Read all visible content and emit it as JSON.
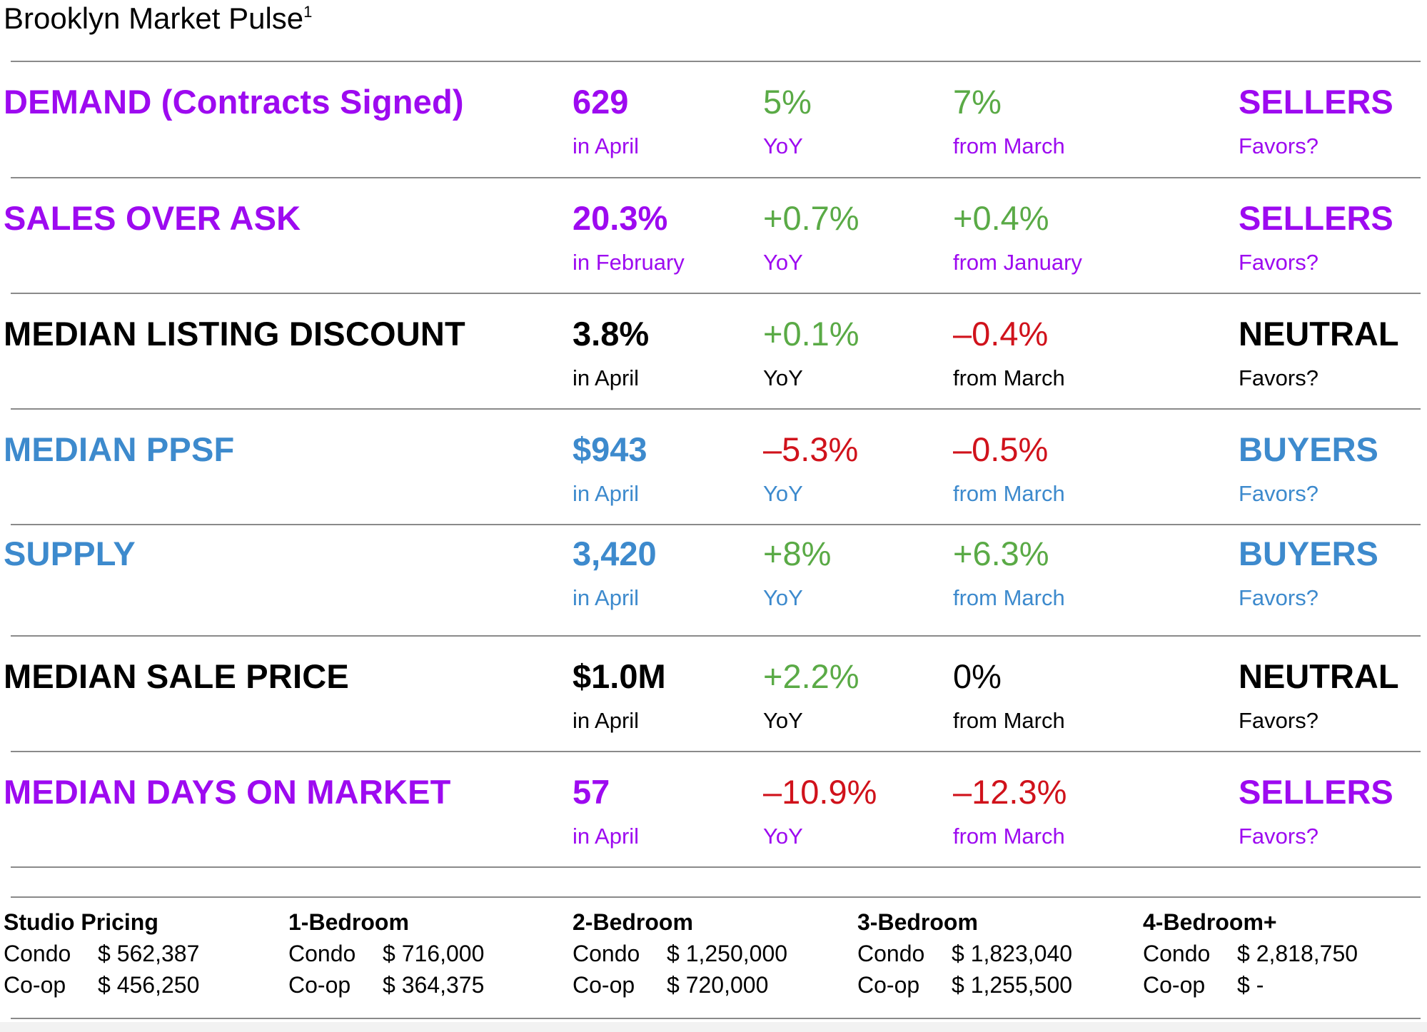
{
  "header": {
    "title": "Brooklyn Market Pulse",
    "footnote": "1"
  },
  "colors": {
    "purple": "#9d0af0",
    "blue": "#3d8acd",
    "black": "#000000",
    "green": "#5aaa46",
    "red": "#d0121b"
  },
  "metrics": [
    {
      "label": "DEMAND (Contracts Signed)",
      "value": "629",
      "period": "in April",
      "yoy": "5%",
      "yoy_label": "YoY",
      "mom": "7%",
      "mom_label": "from March",
      "favors": "SELLERS",
      "favors_label": "Favors?"
    },
    {
      "label": "SALES OVER ASK",
      "value": "20.3%",
      "period": "in February",
      "yoy": "+0.7%",
      "yoy_label": "YoY",
      "mom": "+0.4%",
      "mom_label": "from January",
      "favors": "SELLERS",
      "favors_label": "Favors?"
    },
    {
      "label": "MEDIAN LISTING DISCOUNT",
      "value": "3.8%",
      "period": "in April",
      "yoy": "+0.1%",
      "yoy_label": "YoY",
      "mom": "–0.4%",
      "mom_label": "from March",
      "favors": "NEUTRAL",
      "favors_label": "Favors?"
    },
    {
      "label": "MEDIAN PPSF",
      "value": "$943",
      "period": "in April",
      "yoy": "–5.3%",
      "yoy_label": "YoY",
      "mom": "–0.5%",
      "mom_label": "from March",
      "favors": "BUYERS",
      "favors_label": "Favors?"
    },
    {
      "label": "SUPPLY",
      "value": "3,420",
      "period": "in April",
      "yoy": "+8%",
      "yoy_label": "YoY",
      "mom": "+6.3%",
      "mom_label": "from March",
      "favors": "BUYERS",
      "favors_label": "Favors?"
    },
    {
      "label": "MEDIAN SALE PRICE",
      "value": "$1.0M",
      "period": "in April",
      "yoy": "+2.2%",
      "yoy_label": "YoY",
      "mom": "0%",
      "mom_label": "from March",
      "favors": "NEUTRAL",
      "favors_label": "Favors?"
    },
    {
      "label": "MEDIAN DAYS ON MARKET",
      "value": "57",
      "period": "in April",
      "yoy": "–10.9%",
      "yoy_label": "YoY",
      "mom": "–12.3%",
      "mom_label": "from March",
      "favors": "SELLERS",
      "favors_label": "Favors?"
    }
  ],
  "pricing": [
    {
      "heading": "Studio Pricing",
      "rows": [
        {
          "type": "Condo",
          "price": "$ 562,387"
        },
        {
          "type": "Co-op",
          "price": "$ 456,250"
        }
      ]
    },
    {
      "heading": "1-Bedroom",
      "rows": [
        {
          "type": "Condo",
          "price": "$ 716,000"
        },
        {
          "type": "Co-op",
          "price": "$ 364,375"
        }
      ]
    },
    {
      "heading": "2-Bedroom",
      "rows": [
        {
          "type": "Condo",
          "price": "$ 1,250,000"
        },
        {
          "type": "Co-op",
          "price": "$ 720,000"
        }
      ]
    },
    {
      "heading": "3-Bedroom",
      "rows": [
        {
          "type": "Condo",
          "price": "$ 1,823,040"
        },
        {
          "type": "Co-op",
          "price": "$ 1,255,500"
        }
      ]
    },
    {
      "heading": "4-Bedroom+",
      "rows": [
        {
          "type": "Condo",
          "price": "$ 2,818,750"
        },
        {
          "type": "Co-op",
          "price": "$ -"
        }
      ]
    }
  ]
}
